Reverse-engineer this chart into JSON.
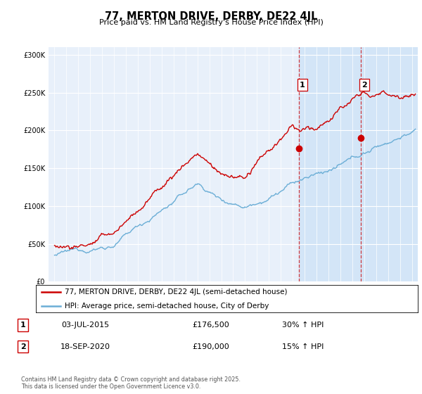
{
  "title": "77, MERTON DRIVE, DERBY, DE22 4JL",
  "subtitle": "Price paid vs. HM Land Registry's House Price Index (HPI)",
  "ytick_values": [
    0,
    50000,
    100000,
    150000,
    200000,
    250000,
    300000
  ],
  "ylim": [
    0,
    310000
  ],
  "xlim_start": 1994.5,
  "xlim_end": 2025.5,
  "red_color": "#cc0000",
  "blue_color": "#6baed6",
  "marker1_year": 2015.5,
  "marker1_price": 176500,
  "marker2_year": 2020.72,
  "marker2_price": 190000,
  "shade_start": 2015.5,
  "shade_end": 2025.5,
  "shade_color": "#d0e4f7",
  "vline_color": "#cc0000",
  "background_color": "#e8f0fa",
  "legend_label_red": "77, MERTON DRIVE, DERBY, DE22 4JL (semi-detached house)",
  "legend_label_blue": "HPI: Average price, semi-detached house, City of Derby",
  "note1_num": "1",
  "note1_date": "03-JUL-2015",
  "note1_price": "£176,500",
  "note1_hpi": "30% ↑ HPI",
  "note2_num": "2",
  "note2_date": "18-SEP-2020",
  "note2_price": "£190,000",
  "note2_hpi": "15% ↑ HPI",
  "footer": "Contains HM Land Registry data © Crown copyright and database right 2025.\nThis data is licensed under the Open Government Licence v3.0."
}
